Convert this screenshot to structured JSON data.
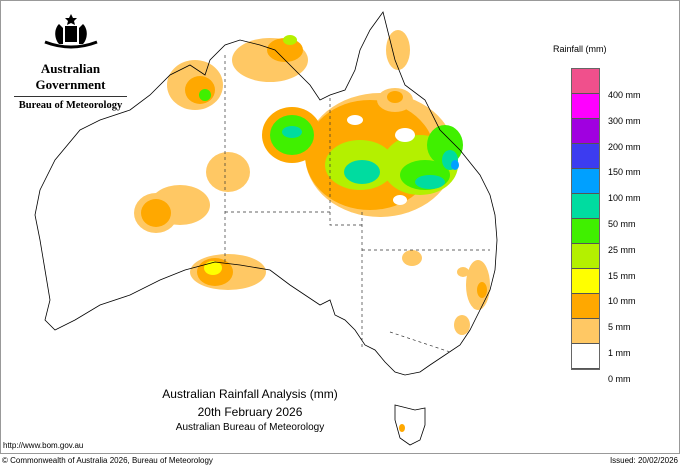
{
  "header": {
    "logo_text": "Australian Government",
    "agency": "Bureau of Meteorology",
    "logo_icon": "coat-of-arms-icon"
  },
  "map": {
    "title": "Australian Rainfall Analysis (mm)",
    "date": "20th February 2026",
    "source": "Australian Bureau of Meteorology"
  },
  "footer": {
    "url": "http://www.bom.gov.au",
    "copyright": "© Commonwealth of Australia 2026, Bureau of Meteorology",
    "issued": "Issued: 20/02/2026"
  },
  "legend": {
    "title": "Rainfall (mm)",
    "colors": [
      "#f0508c",
      "#ff00ff",
      "#a000e0",
      "#3c3cf0",
      "#00a0ff",
      "#00dca0",
      "#40f000",
      "#b4f000",
      "#ffff00",
      "#ffa800",
      "#ffc864",
      "#ffffff"
    ],
    "labels": [
      "400 mm",
      "300 mm",
      "200 mm",
      "150 mm",
      "100 mm",
      "50 mm",
      "25 mm",
      "15 mm",
      "10 mm",
      "5 mm",
      "1 mm",
      "0 mm"
    ]
  }
}
